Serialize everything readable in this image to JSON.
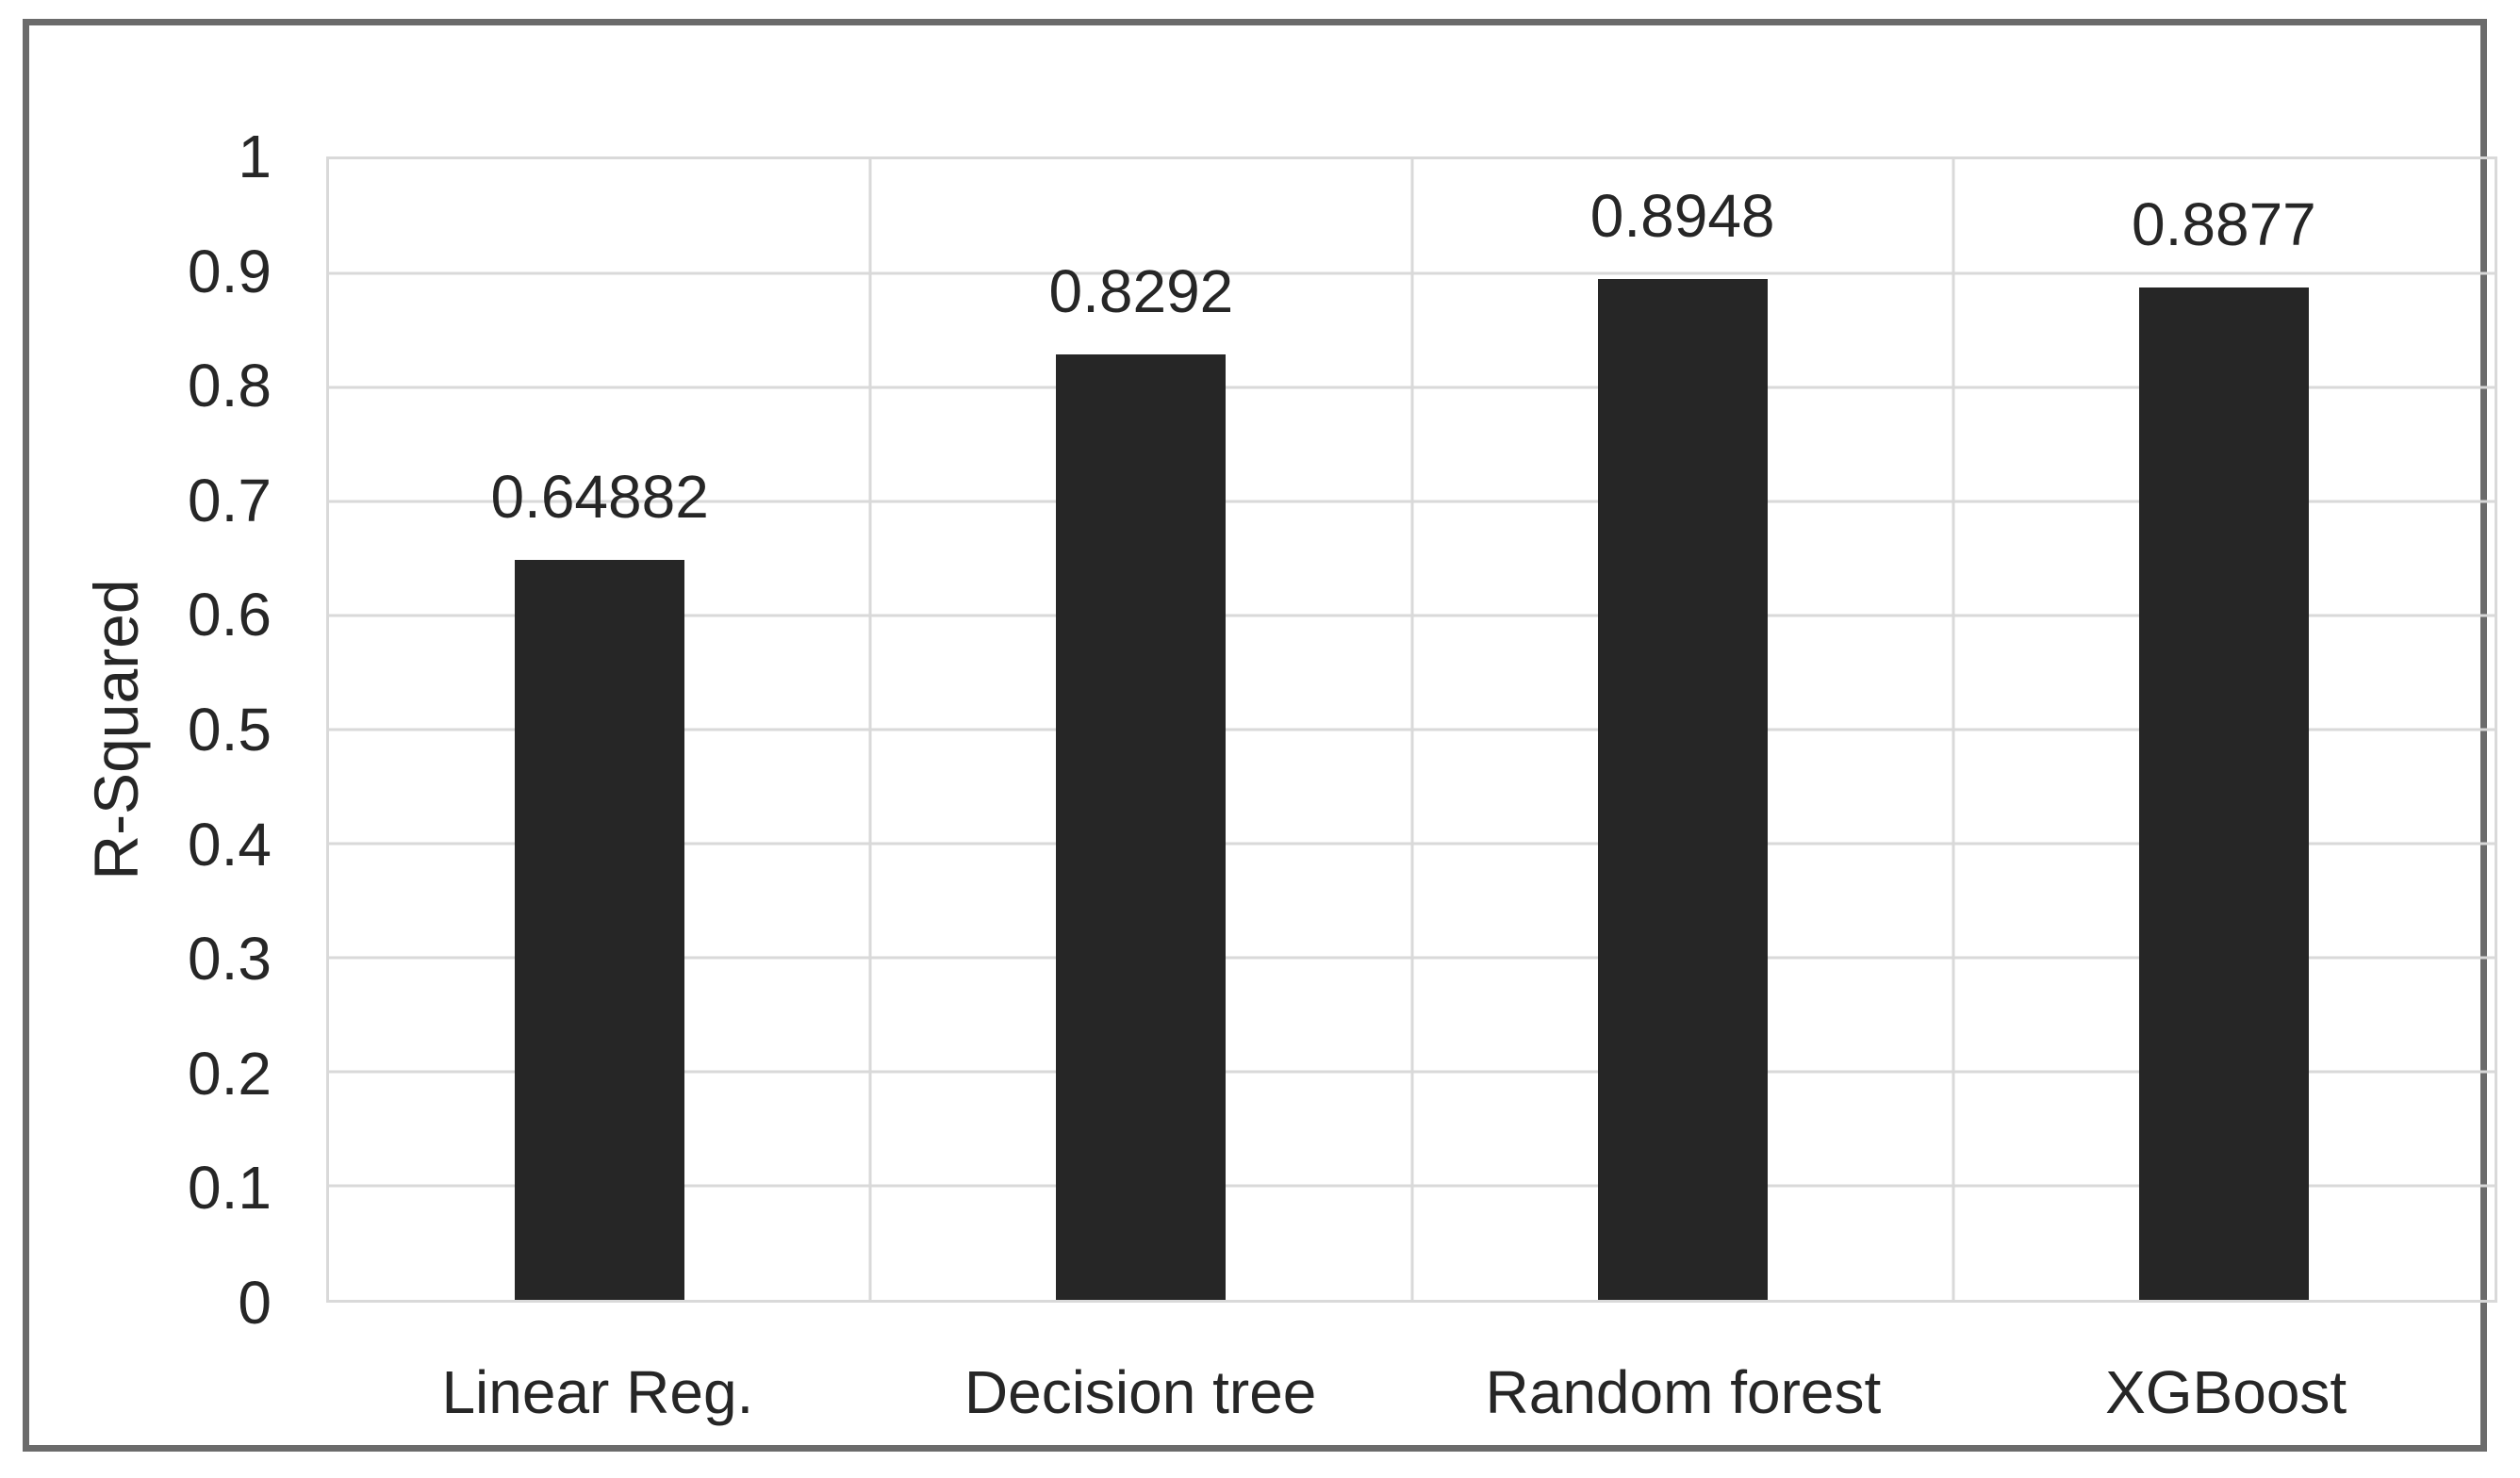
{
  "chart_data": {
    "type": "bar",
    "title": "",
    "categories": [
      "Linear Reg.",
      "Decision tree",
      "Random forest",
      "XGBoost"
    ],
    "values": [
      0.64882,
      0.8292,
      0.8948,
      0.8877
    ],
    "value_labels": [
      "0.64882",
      "0.8292",
      "0.8948",
      "0.8877"
    ],
    "xlabel": "",
    "ylabel": "R-Squared",
    "ylim": [
      0,
      1
    ],
    "ytick_step": 0.1,
    "yticks": [
      "1",
      "0.9",
      "0.8",
      "0.7",
      "0.6",
      "0.5",
      "0.4",
      "0.3",
      "0.2",
      "0.1",
      "0"
    ],
    "grid": true,
    "legend": "none",
    "colors": {
      "bar": "#262626",
      "gridline": "#d9d9d9",
      "frame_border": "#6b6b6b",
      "text": "#262626",
      "background": "#ffffff"
    }
  }
}
